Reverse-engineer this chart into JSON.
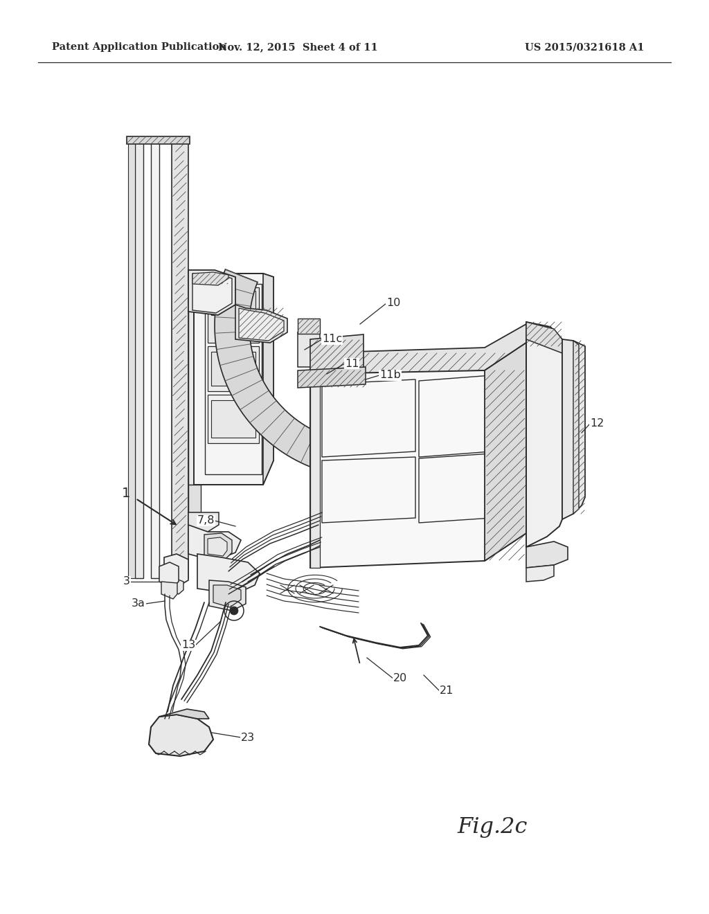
{
  "header_left": "Patent Application Publication",
  "header_center": "Nov. 12, 2015  Sheet 4 of 11",
  "header_right": "US 2015/0321618 A1",
  "fig_label": "Fig.2c",
  "bg_color": "#ffffff",
  "line_color": "#2a2a2a",
  "header_fontsize": 10.5,
  "fig_label_fontsize": 23,
  "label_fontsize": 11.5
}
